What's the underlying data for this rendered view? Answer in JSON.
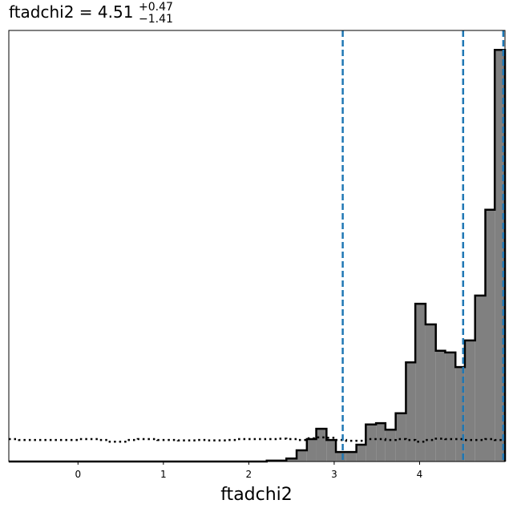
{
  "chart_data": {
    "type": "histogram",
    "title": "ftadchi2 = 4.51",
    "title_upper": "+0.47",
    "title_lower": "−1.41",
    "xlabel": "ftadchi2",
    "xlim": [
      -0.81,
      5.0
    ],
    "ylim": [
      0,
      1
    ],
    "xticks": [
      0,
      1,
      2,
      3,
      4
    ],
    "quantiles": [
      3.1,
      4.51,
      4.98
    ],
    "quantile_color": "#1f77b4",
    "bins": [
      -0.81,
      -0.69,
      -0.58,
      -0.46,
      -0.35,
      -0.23,
      -0.11,
      0.0,
      0.12,
      0.24,
      0.35,
      0.47,
      0.58,
      0.7,
      0.82,
      0.93,
      1.05,
      1.17,
      1.28,
      1.4,
      1.51,
      1.63,
      1.75,
      1.86,
      1.98,
      2.1,
      2.21,
      2.33,
      2.44,
      2.56,
      2.68,
      2.79,
      2.91,
      3.02,
      3.14,
      3.26,
      3.37,
      3.49,
      3.6,
      3.72,
      3.84,
      3.95,
      4.07,
      4.19,
      4.3,
      4.42,
      4.53,
      4.65,
      4.77,
      4.88,
      5.0
    ],
    "series": [
      {
        "color": "#808080",
        "style": "filled",
        "values": [
          0,
          0,
          0,
          0,
          0,
          0,
          0,
          0,
          0,
          0,
          0,
          0,
          0,
          0,
          0,
          0,
          0,
          0,
          0,
          0,
          0,
          0,
          0,
          0,
          0,
          0,
          0.002,
          0.002,
          0.007,
          0.026,
          0.052,
          0.076,
          0.05,
          0.022,
          0.022,
          0.039,
          0.086,
          0.089,
          0.074,
          0.112,
          0.23,
          0.366,
          0.318,
          0.257,
          0.253,
          0.219,
          0.281,
          0.385,
          0.584,
          0.955
        ]
      },
      {
        "color": "#000000",
        "style": "dotted",
        "values": [
          0.052,
          0.05,
          0.05,
          0.05,
          0.05,
          0.05,
          0.05,
          0.052,
          0.052,
          0.05,
          0.046,
          0.046,
          0.05,
          0.052,
          0.052,
          0.05,
          0.05,
          0.049,
          0.049,
          0.05,
          0.049,
          0.049,
          0.05,
          0.052,
          0.052,
          0.052,
          0.052,
          0.053,
          0.052,
          0.05,
          0.054,
          0.056,
          0.055,
          0.05,
          0.048,
          0.048,
          0.052,
          0.052,
          0.05,
          0.052,
          0.05,
          0.046,
          0.05,
          0.053,
          0.052,
          0.052,
          0.05,
          0.05,
          0.052,
          0.05
        ]
      }
    ]
  }
}
